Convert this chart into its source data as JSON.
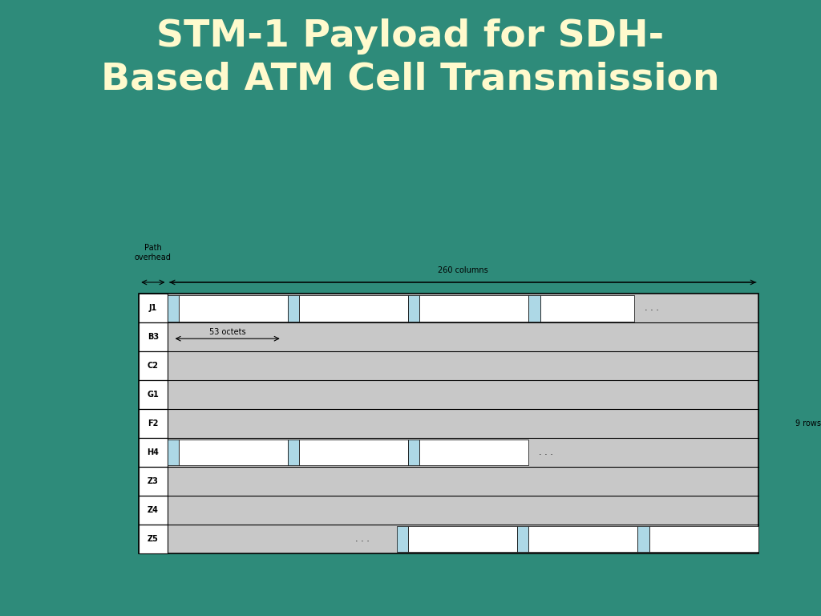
{
  "title_line1": "STM-1 Payload for SDH-",
  "title_line2": "Based ATM Cell Transmission",
  "title_color": "#FFFACD",
  "bg_color": "#2E8B7A",
  "title_fontsize": 34,
  "panel_bg": "#FFFFFF",
  "row_labels": [
    "J1",
    "B3",
    "C2",
    "G1",
    "F2",
    "H4",
    "Z3",
    "Z4",
    "Z5"
  ],
  "gray_fill": "#C8C8C8",
  "white_fill": "#FFFFFF",
  "blue_fill": "#ADD8E6",
  "n_rows": 9,
  "note_53_octets": "53 octets",
  "note_260_cols": "260 columns",
  "note_path_oh": "Path\noverhead",
  "note_9rows": "9 rows"
}
